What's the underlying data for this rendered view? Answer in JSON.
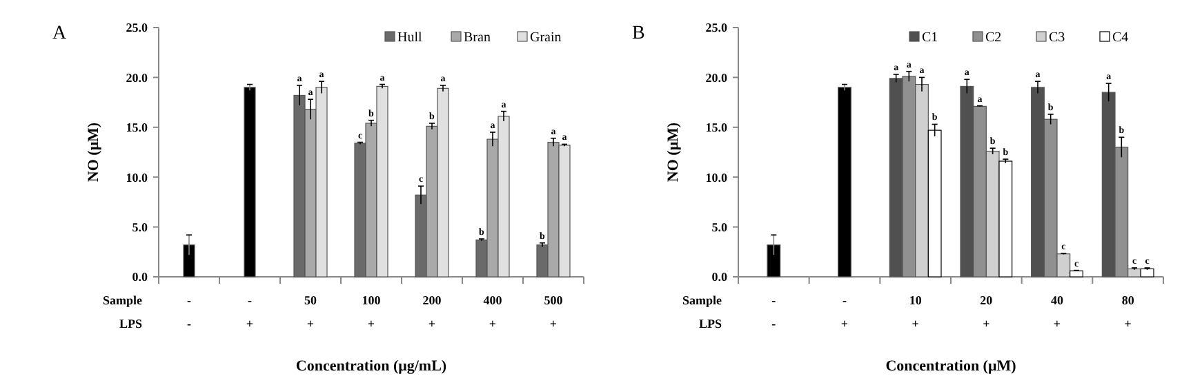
{
  "chart_data": [
    {
      "type": "bar",
      "title": "A",
      "ylabel": "NO (μM)",
      "xlabel": "Concentration (μg/mL)",
      "categories": [
        "-\n-",
        "-\n+",
        "50\n+",
        "100\n+",
        "200\n+",
        "400\n+",
        "500\n+"
      ],
      "annotations": [
        "Sample",
        "LPS"
      ],
      "ylim": [
        0,
        25
      ],
      "yticks": [
        {
          "value": 0,
          "label": "0.0"
        },
        {
          "value": 5,
          "label": "5.0"
        },
        {
          "value": 10,
          "label": "10.0"
        },
        {
          "value": 15,
          "label": "15.0"
        },
        {
          "value": 20,
          "label": "20.0"
        },
        {
          "value": 25,
          "label": "25.0"
        }
      ],
      "grid": false,
      "legend": "top right",
      "series": [
        {
          "color": "#000000",
          "values": [
            3.2,
            19.0,
            null,
            null,
            null,
            null,
            null
          ],
          "errors": [
            1.0,
            0.3,
            null,
            null,
            null,
            null,
            null
          ]
        },
        {
          "name": "Hull",
          "color": "#6a6a6a",
          "values": [
            null,
            null,
            18.2,
            13.4,
            8.2,
            3.7,
            3.2
          ],
          "errors": [
            null,
            null,
            1.0,
            0.1,
            0.9,
            0.1,
            0.2
          ],
          "value_labels": [
            null,
            null,
            "a",
            "c",
            "c",
            "b",
            "b"
          ]
        },
        {
          "name": "Bran",
          "color": "#a9a9a9",
          "values": [
            null,
            null,
            16.8,
            15.4,
            15.1,
            13.8,
            13.5
          ],
          "errors": [
            null,
            null,
            1.0,
            0.3,
            0.3,
            0.7,
            0.4
          ],
          "value_labels": [
            null,
            null,
            "a",
            "b",
            "b",
            "a",
            "a"
          ]
        },
        {
          "name": "Grain",
          "color": "#e0e0e0",
          "values": [
            null,
            null,
            19.0,
            19.1,
            18.9,
            16.1,
            13.2
          ],
          "errors": [
            null,
            null,
            0.6,
            0.2,
            0.3,
            0.5,
            0.1
          ],
          "value_labels": [
            null,
            null,
            "a",
            "a",
            "a",
            "a",
            "a"
          ]
        }
      ]
    },
    {
      "type": "bar",
      "title": "B",
      "ylabel": "NO (μM)",
      "xlabel": "Concentration (μM)",
      "categories": [
        "-\n-",
        "-\n+",
        "10\n+",
        "20\n+",
        "40\n+",
        "80\n+"
      ],
      "annotations": [
        "Sample",
        "LPS"
      ],
      "ylim": [
        0,
        25
      ],
      "yticks": [
        {
          "value": 0,
          "label": "0.0"
        },
        {
          "value": 5,
          "label": "5.0"
        },
        {
          "value": 10,
          "label": "10.0"
        },
        {
          "value": 15,
          "label": "15.0"
        },
        {
          "value": 20,
          "label": "20.0"
        },
        {
          "value": 25,
          "label": "25.0"
        }
      ],
      "grid": false,
      "legend": "top right",
      "series": [
        {
          "color": "#000000",
          "values": [
            3.2,
            19.0,
            null,
            null,
            null,
            null
          ],
          "errors": [
            1.0,
            0.3,
            null,
            null,
            null,
            null
          ]
        },
        {
          "name": "C1",
          "color": "#505050",
          "values": [
            null,
            null,
            19.9,
            19.1,
            19.0,
            18.5
          ],
          "errors": [
            null,
            null,
            0.4,
            0.7,
            0.6,
            0.9
          ],
          "value_labels": [
            null,
            null,
            "a",
            "a",
            "a",
            "a"
          ]
        },
        {
          "name": "C2",
          "color": "#909090",
          "values": [
            null,
            null,
            20.1,
            17.1,
            15.8,
            13.0
          ],
          "errors": [
            null,
            null,
            0.5,
            0.05,
            0.5,
            1.0
          ],
          "value_labels": [
            null,
            null,
            "a",
            "a",
            "b",
            "b"
          ]
        },
        {
          "name": "C3",
          "color": "#d0d0d0",
          "values": [
            null,
            null,
            19.3,
            12.6,
            2.3,
            0.8
          ],
          "errors": [
            null,
            null,
            0.7,
            0.3,
            0.05,
            0.1
          ],
          "value_labels": [
            null,
            null,
            "a",
            "b",
            "c",
            "c"
          ]
        },
        {
          "name": "C4",
          "color": "#ffffff",
          "values": [
            null,
            null,
            14.7,
            11.6,
            0.6,
            0.8
          ],
          "errors": [
            null,
            null,
            0.6,
            0.2,
            0.05,
            0.1
          ],
          "value_labels": [
            null,
            null,
            "b",
            "b",
            "c",
            "c"
          ]
        }
      ]
    }
  ]
}
